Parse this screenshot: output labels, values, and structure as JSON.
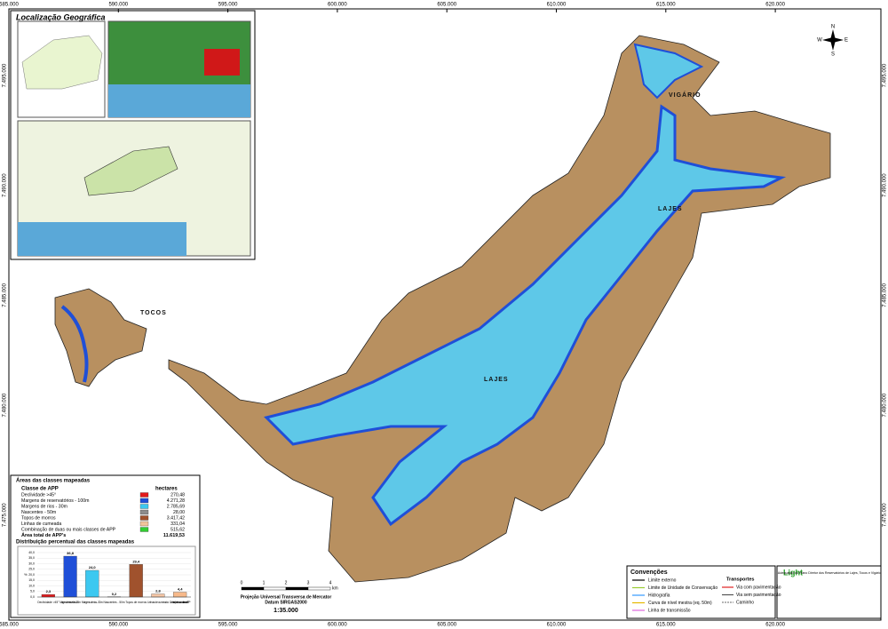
{
  "map_title": "Localização Geográfica",
  "grid": {
    "x_labels": [
      "585.000",
      "590.000",
      "595.000",
      "600.000",
      "605.000",
      "610.000",
      "615.000",
      "620.000"
    ],
    "y_labels": [
      "7.495.000",
      "7.490.000",
      "7.485.000",
      "7.480.000",
      "7.475.000"
    ]
  },
  "places": [
    "VIGÁRIO",
    "LAJES",
    "LAJES",
    "TOCOS"
  ],
  "areas_table": {
    "title": "Áreas das classes mapeadas",
    "header": [
      "Classe de APP",
      "hectares"
    ],
    "rows": [
      {
        "name": "Declividade >45°",
        "color": "#e31a1c",
        "hectares": "270,48"
      },
      {
        "name": "Margens de reservatórios - 100m",
        "color": "#1f4fd8",
        "hectares": "4.271,28"
      },
      {
        "name": "Margens de rios - 30m",
        "color": "#3cc8f0",
        "hectares": "2.785,69"
      },
      {
        "name": "Nascentes - 50m",
        "color": "#8c8c8c",
        "hectares": "28,00"
      },
      {
        "name": "Topos de morros",
        "color": "#a0522d",
        "hectares": "3.417,42"
      },
      {
        "name": "Linhas de cumeada",
        "color": "#f2c49b",
        "hectares": "331,04"
      },
      {
        "name": "Combinação de duas ou mais classes de APP",
        "color": "#33cc33",
        "hectares": "515,62"
      }
    ],
    "total": {
      "name": "Área total de APP's",
      "hectares": "11.619,53"
    }
  },
  "distribution_chart": {
    "type": "bar",
    "title": "Distribuição percentual das classes mapeadas",
    "y_label": "%",
    "categories": [
      "Declividade >45°",
      "Margens de reservatórios - 100m",
      "Margens de rios - 30m",
      "Nascentes - 50m",
      "Topos de morros",
      "Linhas de cumeada",
      "Combinação de duas ou mais classes de APP"
    ],
    "values": [
      2.3,
      36.8,
      24.0,
      0.2,
      29.4,
      2.8,
      4.4
    ],
    "value_labels": [
      "2,3",
      "36,8",
      "24,0",
      "0,2",
      "29,4",
      "2,8",
      "4,4"
    ],
    "colors": [
      "#e31a1c",
      "#1f4fd8",
      "#3cc8f0",
      "#8c8c8c",
      "#a0522d",
      "#f5c6a5",
      "#f7b98a"
    ],
    "ylim": [
      0,
      40
    ],
    "yticks": [
      {
        "value": 0,
        "label": "0,0"
      },
      {
        "value": 5,
        "label": "5,0"
      },
      {
        "value": 10,
        "label": "10,0"
      },
      {
        "value": 15,
        "label": "15,0"
      },
      {
        "value": 20,
        "label": "20,0"
      },
      {
        "value": 25,
        "label": "25,0"
      },
      {
        "value": 30,
        "label": "30,0"
      },
      {
        "value": 35,
        "label": "35,0"
      },
      {
        "value": 40,
        "label": "40,0"
      }
    ],
    "grid": true
  },
  "conventions": {
    "title": "Convenções",
    "items": [
      "Limite externo",
      "Limite de Unidade de Conservação",
      "Hidrografia",
      "Curva de nível mestra (eq. 50m)",
      "Linha de transmissão"
    ],
    "transport_title": "Transportes",
    "transport_items": [
      "Via com pavimentação",
      "Via sem pavimentação",
      "Caminho"
    ]
  },
  "scale": {
    "ticks": [
      "0",
      "1",
      "2",
      "3",
      "4"
    ],
    "unit": "km",
    "projection": "Projeção Universal Transversa de Mercator",
    "datum": "Datum SIRGAS2000",
    "ratio": "1:35.000"
  },
  "title_block": {
    "logo": "Light",
    "text": "Adequação do Plano Diretor dos Reservatórios de Lajes, Tocos e Vigário"
  }
}
